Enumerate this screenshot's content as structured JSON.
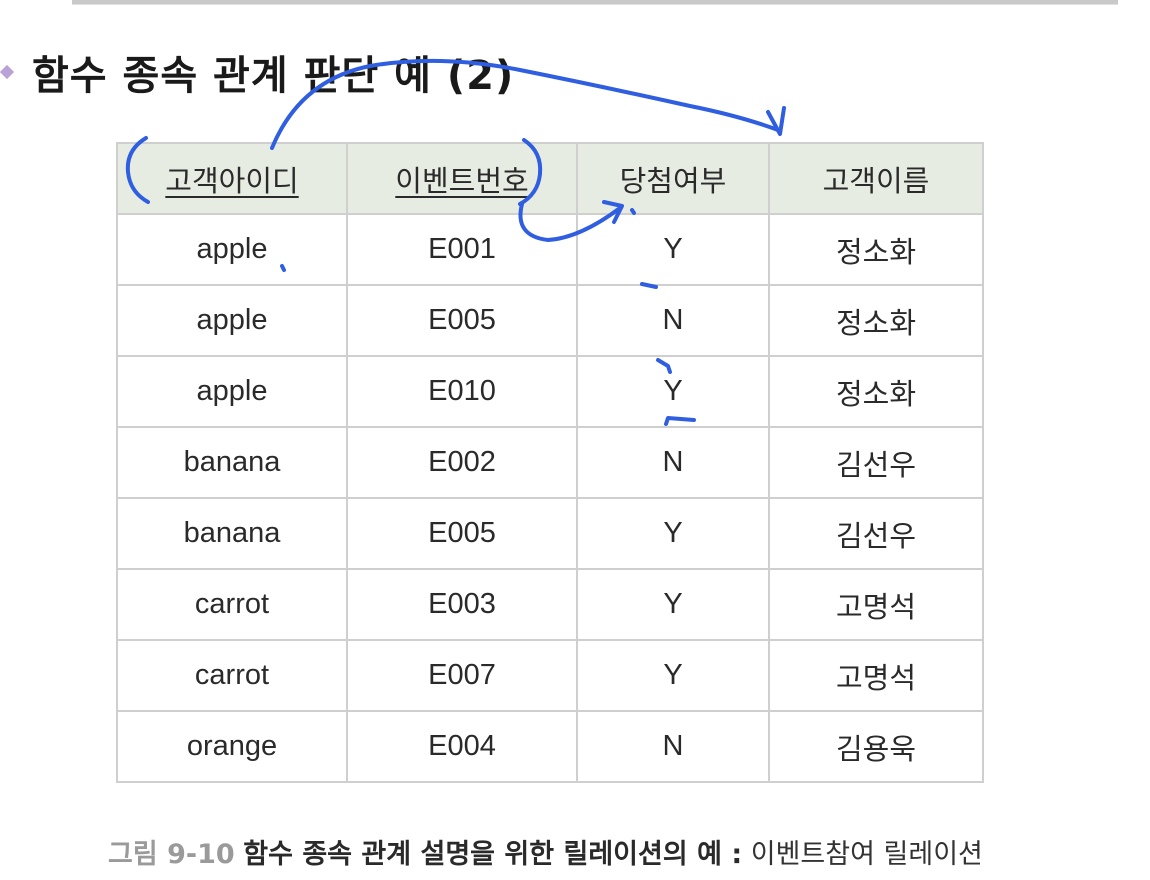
{
  "slide": {
    "title": "함수 종속 관계 판단 예 (2)"
  },
  "table": {
    "headers": [
      "고객아이디",
      "이벤트번호",
      "당첨여부",
      "고객이름"
    ],
    "rows": [
      [
        "apple",
        "E001",
        "Y",
        "정소화"
      ],
      [
        "apple",
        "E005",
        "N",
        "정소화"
      ],
      [
        "apple",
        "E010",
        "Y",
        "정소화"
      ],
      [
        "banana",
        "E002",
        "N",
        "김선우"
      ],
      [
        "banana",
        "E005",
        "Y",
        "김선우"
      ],
      [
        "carrot",
        "E003",
        "Y",
        "고명석"
      ],
      [
        "carrot",
        "E007",
        "Y",
        "고명석"
      ],
      [
        "orange",
        "E004",
        "N",
        "김용욱"
      ]
    ]
  },
  "caption": {
    "figure_label": "그림 9-10",
    "bold_text": "함수 종속 관계 설명을 위한 릴레이션의 예 :",
    "plain_text": "이벤트참여 릴레이션"
  },
  "colors": {
    "ink": "#2f5ee0",
    "header_bg": "#e7ece3",
    "border": "#cfcfcf",
    "bullet": "#b8a2d8"
  }
}
